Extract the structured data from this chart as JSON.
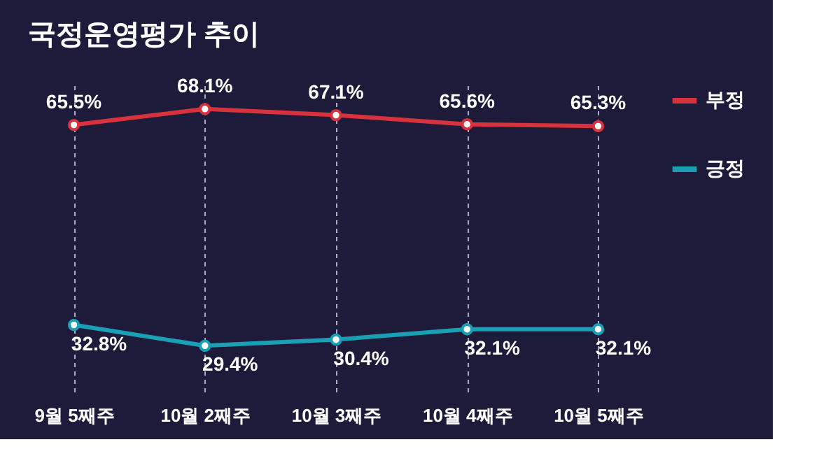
{
  "chart_data": {
    "type": "line",
    "title": "국정운영평가 추이",
    "categories": [
      "9월 5째주",
      "10월 2째주",
      "10월 3째주",
      "10월 4째주",
      "10월 5째주"
    ],
    "series": [
      {
        "name": "부정",
        "color": "#d8323c",
        "values": [
          65.5,
          68.1,
          67.1,
          65.6,
          65.3
        ],
        "value_labels": [
          "65.5%",
          "68.1%",
          "67.1%",
          "65.6%",
          "65.3%"
        ]
      },
      {
        "name": "긍정",
        "color": "#1aa0b4",
        "values": [
          32.8,
          29.4,
          30.4,
          32.1,
          32.1
        ],
        "value_labels": [
          "32.8%",
          "29.4%",
          "30.4%",
          "32.1%",
          "32.1%"
        ]
      }
    ],
    "tick_labels": "x",
    "grid": "x",
    "legend": "right",
    "marker": "circle"
  }
}
